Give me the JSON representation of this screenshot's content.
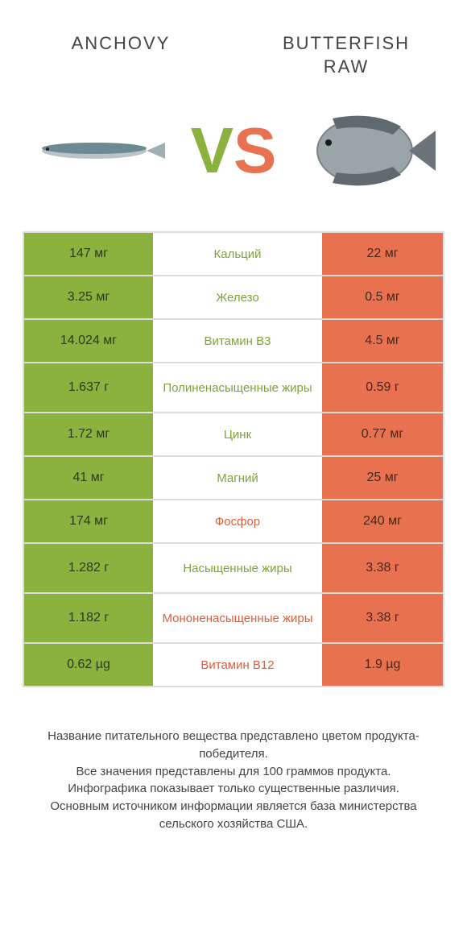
{
  "colors": {
    "green": "#8bb13f",
    "orange": "#e8724f",
    "green_text": "#7fa23a",
    "orange_text": "#d9603e"
  },
  "header": {
    "left": "ANCHOVY",
    "right": "BUTTERFISH RAW"
  },
  "vs": {
    "v": "V",
    "s": "S"
  },
  "rows": [
    {
      "left": "147 мг",
      "mid": "Кальций",
      "right": "22 мг",
      "winner": "left",
      "tall": false
    },
    {
      "left": "3.25 мг",
      "mid": "Железо",
      "right": "0.5 мг",
      "winner": "left",
      "tall": false
    },
    {
      "left": "14.024 мг",
      "mid": "Витамин B3",
      "right": "4.5 мг",
      "winner": "left",
      "tall": false
    },
    {
      "left": "1.637 г",
      "mid": "Полиненасыщенные жиры",
      "right": "0.59 г",
      "winner": "left",
      "tall": true
    },
    {
      "left": "1.72 мг",
      "mid": "Цинк",
      "right": "0.77 мг",
      "winner": "left",
      "tall": false
    },
    {
      "left": "41 мг",
      "mid": "Магний",
      "right": "25 мг",
      "winner": "left",
      "tall": false
    },
    {
      "left": "174 мг",
      "mid": "Фосфор",
      "right": "240 мг",
      "winner": "right",
      "tall": false
    },
    {
      "left": "1.282 г",
      "mid": "Насыщенные жиры",
      "right": "3.38 г",
      "winner": "left",
      "tall": true
    },
    {
      "left": "1.182 г",
      "mid": "Мононенасыщенные жиры",
      "right": "3.38 г",
      "winner": "right",
      "tall": true
    },
    {
      "left": "0.62 µg",
      "mid": "Витамин B12",
      "right": "1.9 µg",
      "winner": "right",
      "tall": false
    }
  ],
  "footer": {
    "l1": "Название питательного вещества представлено цветом продукта-победителя.",
    "l2": "Все значения представлены для 100 граммов продукта.",
    "l3": "Инфографика показывает только существенные различия.",
    "l4": "Основным источником информации является база министерства сельского хозяйства США."
  }
}
